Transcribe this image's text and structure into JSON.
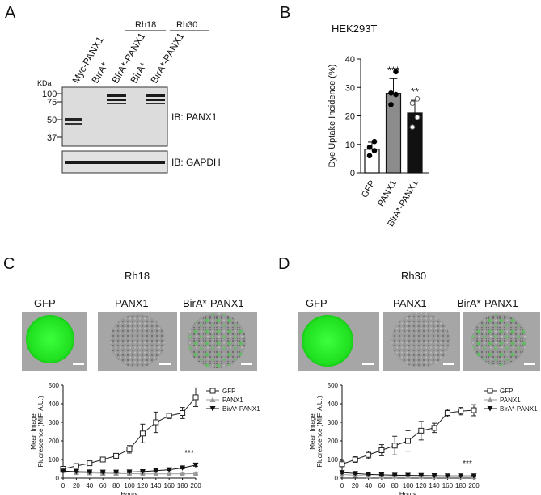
{
  "panels": {
    "A": {
      "label": "A",
      "kda_label": "KDa",
      "mw_markers": [
        "100",
        "75",
        "50",
        "37"
      ],
      "group_labels": [
        "Rh18",
        "Rh30"
      ],
      "lane_labels": [
        "Myc-PANX1",
        "BirA*",
        "BirA*-PANX1",
        "BirA*",
        "BirA*-PANX1"
      ],
      "blot_labels": [
        "IB: PANX1",
        "IB: GAPDH"
      ]
    },
    "B": {
      "label": "B",
      "title": "HEK293T"
    },
    "C": {
      "label": "C",
      "title": "Rh18",
      "image_labels": [
        "GFP",
        "PANX1",
        "BirA*-PANX1"
      ],
      "significance": "***"
    },
    "D": {
      "label": "D",
      "title": "Rh30",
      "image_labels": [
        "GFP",
        "PANX1",
        "BirA*-PANX1"
      ],
      "significance": "***"
    }
  },
  "chart_data": [
    {
      "id": "B",
      "type": "bar",
      "title": "HEK293T",
      "ylabel": "Dye Uptake Incidence (%)",
      "categories": [
        "GFP",
        "PANX1",
        "BirA*-PANX1"
      ],
      "values": [
        8.3,
        27.9,
        21.0
      ],
      "errors": [
        2.5,
        5.2,
        4.5
      ],
      "bar_colors": [
        "#ffffff",
        "#8c8c8c",
        "#111111"
      ],
      "significance": [
        "",
        "***",
        "**"
      ],
      "points": [
        [
          6.0,
          7.8,
          9.0,
          11.0
        ],
        [
          24.0,
          27.5,
          28.0,
          35.5
        ],
        [
          16.0,
          19.5,
          24.5,
          26.0
        ]
      ],
      "ylim": [
        0,
        40
      ],
      "yticks": [
        0,
        10,
        20,
        30,
        40
      ]
    },
    {
      "id": "C",
      "type": "line",
      "xlabel": "Hours",
      "ylabel": "Mean Image Fluorescence (MIF, A.U.)",
      "ylabel_lines": [
        "Mean Image",
        "Fluorescence (MIF, A.U.)"
      ],
      "xlim": [
        0,
        200
      ],
      "ylim": [
        0,
        500
      ],
      "xticks": [
        0,
        20,
        40,
        60,
        80,
        100,
        120,
        140,
        160,
        180,
        200
      ],
      "yticks": [
        0,
        100,
        200,
        300,
        400,
        500
      ],
      "legend_position": "top-right",
      "x": [
        0,
        20,
        40,
        60,
        80,
        100,
        120,
        140,
        160,
        180,
        200
      ],
      "series": [
        {
          "name": "GFP",
          "marker": "square-open",
          "color": "#222222",
          "values": [
            50,
            65,
            80,
            100,
            120,
            155,
            240,
            300,
            335,
            350,
            435
          ],
          "errors": [
            10,
            10,
            10,
            12,
            12,
            20,
            50,
            55,
            15,
            30,
            50
          ]
        },
        {
          "name": "PANX1",
          "marker": "triangle-up",
          "color": "#999999",
          "values": [
            40,
            30,
            28,
            26,
            25,
            24,
            23,
            23,
            23,
            23,
            24
          ],
          "errors": [
            5,
            4,
            3,
            3,
            3,
            3,
            3,
            3,
            3,
            3,
            3
          ]
        },
        {
          "name": "BirA*-PANX1",
          "marker": "triangle-down",
          "color": "#111111",
          "values": [
            38,
            35,
            33,
            32,
            32,
            33,
            35,
            40,
            45,
            55,
            70
          ],
          "errors": [
            4,
            3,
            3,
            3,
            3,
            3,
            3,
            4,
            4,
            5,
            6
          ]
        }
      ]
    },
    {
      "id": "D",
      "type": "line",
      "xlabel": "Hours",
      "ylabel": "Mean Image Fluorescence (MIF, A.U.)",
      "ylabel_lines": [
        "Mean Image",
        "Fluorescence (MIF, A.U.)"
      ],
      "xlim": [
        0,
        200
      ],
      "ylim": [
        0,
        500
      ],
      "xticks": [
        0,
        20,
        40,
        60,
        80,
        100,
        120,
        140,
        160,
        180,
        200
      ],
      "yticks": [
        0,
        100,
        200,
        300,
        400,
        500
      ],
      "legend_position": "top-right",
      "x": [
        0,
        20,
        40,
        60,
        80,
        100,
        120,
        140,
        160,
        180,
        200
      ],
      "series": [
        {
          "name": "GFP",
          "marker": "square-open",
          "color": "#222222",
          "values": [
            75,
            100,
            125,
            150,
            175,
            200,
            255,
            270,
            350,
            360,
            365
          ],
          "errors": [
            20,
            15,
            20,
            30,
            50,
            55,
            50,
            25,
            20,
            20,
            30
          ]
        },
        {
          "name": "PANX1",
          "marker": "triangle-up",
          "color": "#999999",
          "values": [
            20,
            15,
            12,
            10,
            10,
            10,
            9,
            9,
            8,
            8,
            8
          ],
          "errors": [
            4,
            3,
            3,
            2,
            2,
            2,
            2,
            2,
            2,
            2,
            2
          ]
        },
        {
          "name": "BirA*-PANX1",
          "marker": "triangle-down",
          "color": "#111111",
          "values": [
            30,
            25,
            20,
            18,
            16,
            15,
            14,
            13,
            12,
            12,
            12
          ],
          "errors": [
            5,
            4,
            3,
            3,
            3,
            3,
            3,
            3,
            3,
            3,
            3
          ]
        }
      ]
    }
  ]
}
